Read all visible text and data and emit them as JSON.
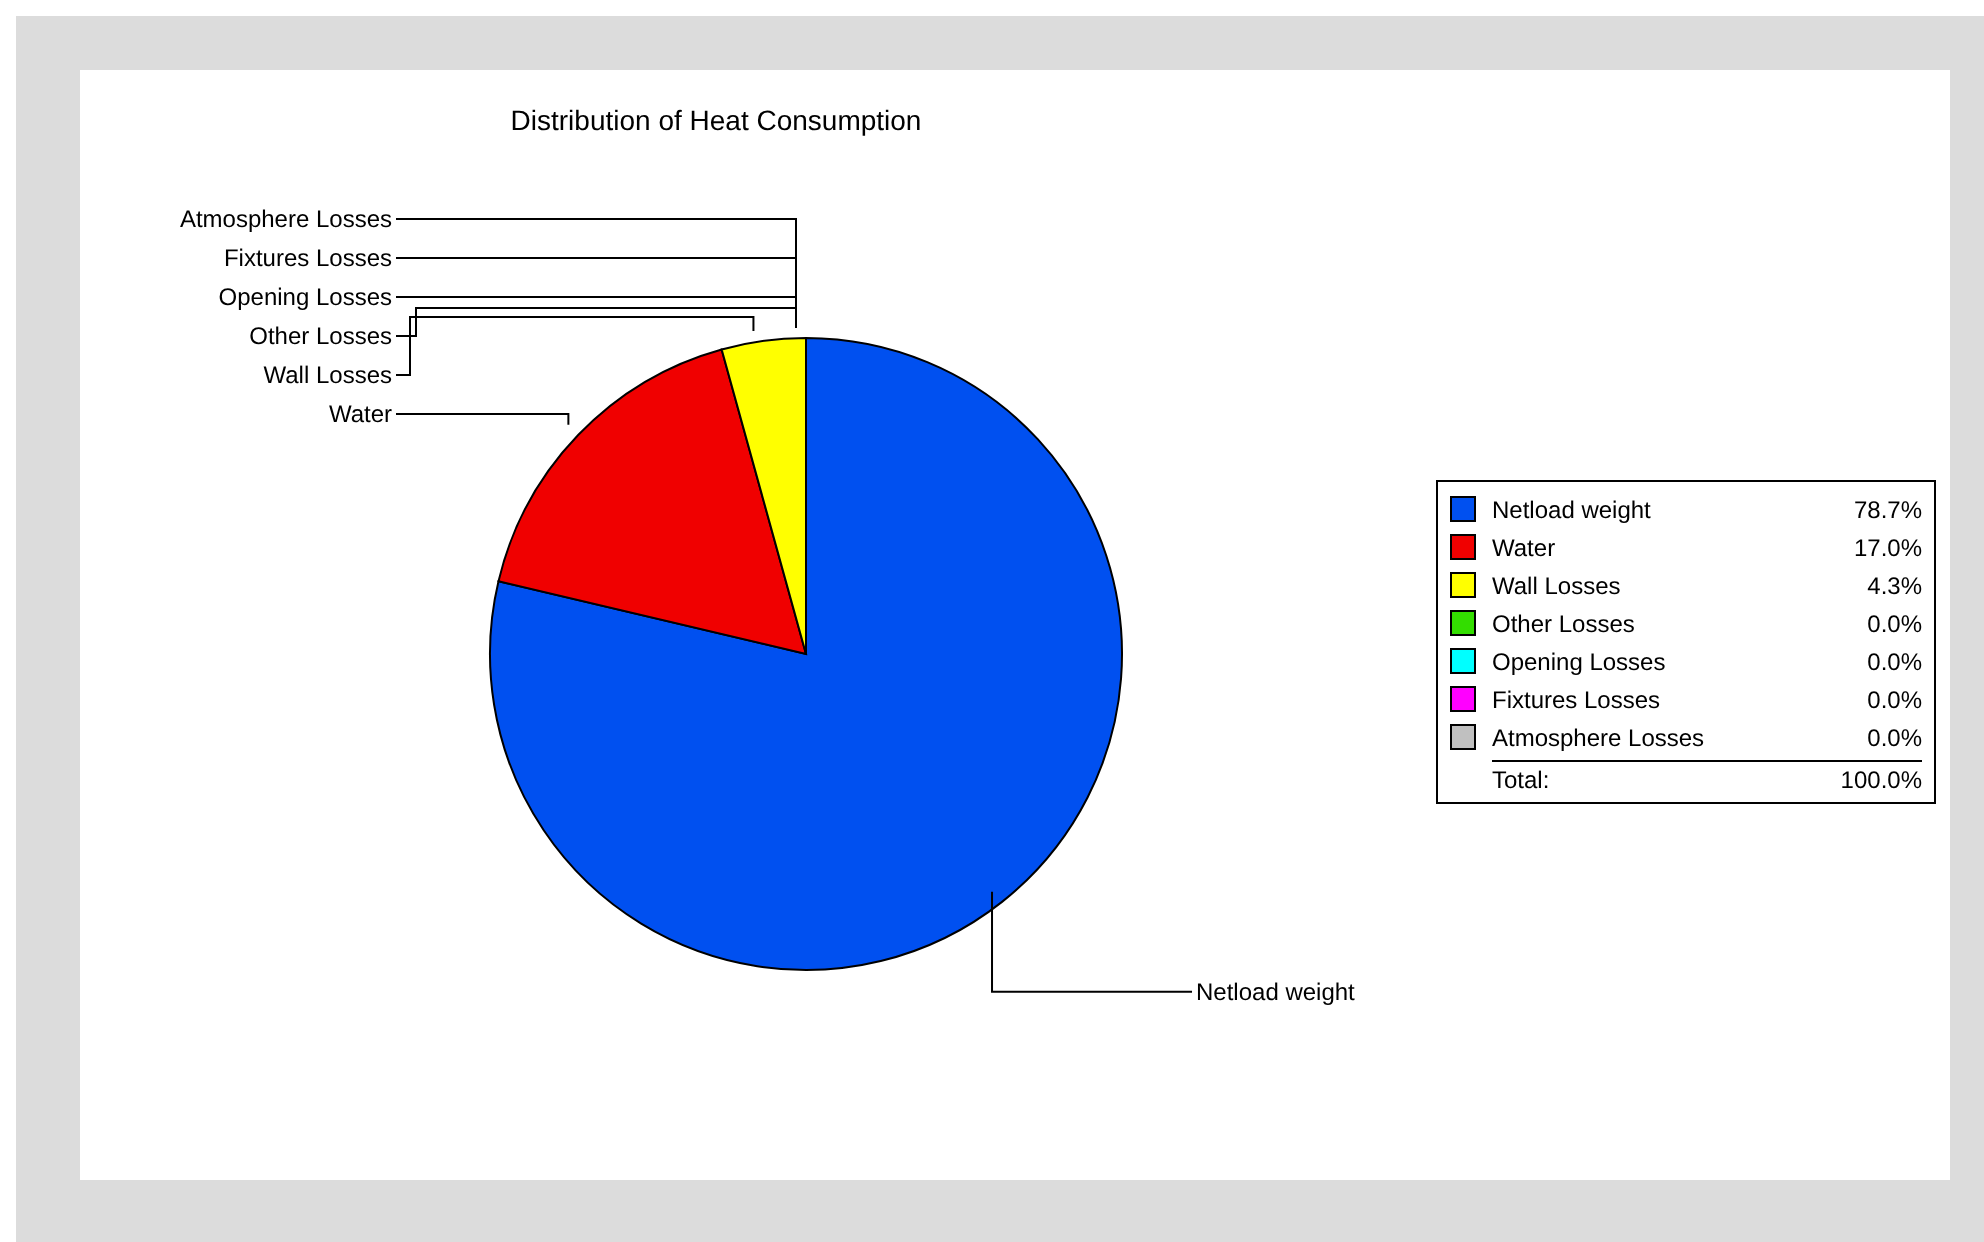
{
  "chart_data": {
    "type": "pie",
    "title": "Distribution of Heat Consumption",
    "categories": [
      "Netload weight",
      "Water",
      "Wall Losses",
      "Other Losses",
      "Opening Losses",
      "Fixtures Losses",
      "Atmosphere Losses"
    ],
    "values": [
      78.7,
      17.0,
      4.3,
      0.0,
      0.0,
      0.0,
      0.0
    ],
    "colors": [
      "#0050f0",
      "#f00000",
      "#ffff00",
      "#33dd00",
      "#00ffff",
      "#ff00ff",
      "#c0c0c0"
    ],
    "value_labels": [
      "78.7%",
      "17.0%",
      "4.3%",
      "0.0%",
      "0.0%",
      "0.0%",
      "0.0%"
    ],
    "legend": "right",
    "annotations": [
      "Total:",
      "100.0%"
    ]
  }
}
